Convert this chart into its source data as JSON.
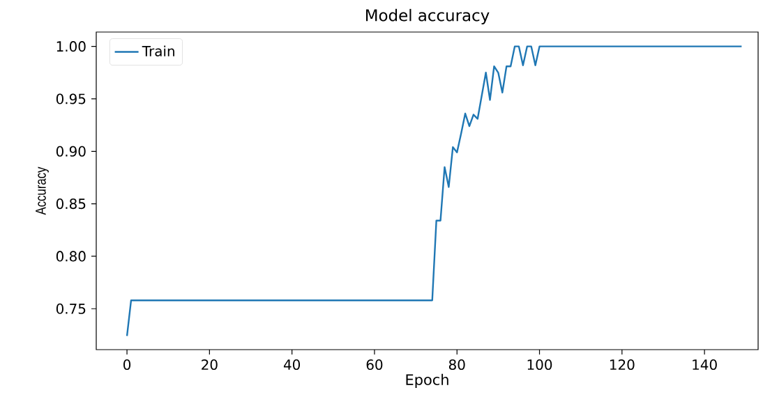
{
  "chart_data": {
    "type": "line",
    "title": "Model accuracy",
    "xlabel": "Epoch",
    "ylabel": "Accuracy",
    "x": [
      0,
      1,
      74,
      75,
      76,
      77,
      78,
      79,
      80,
      81,
      82,
      83,
      84,
      85,
      86,
      87,
      88,
      89,
      90,
      91,
      92,
      93,
      94,
      95,
      96,
      97,
      98,
      99,
      100,
      149
    ],
    "series": [
      {
        "name": "Train",
        "color": "#1f77b4",
        "values": [
          0.724,
          0.758,
          0.758,
          0.834,
          0.834,
          0.885,
          0.866,
          0.904,
          0.899,
          0.917,
          0.936,
          0.924,
          0.935,
          0.931,
          0.953,
          0.975,
          0.949,
          0.981,
          0.975,
          0.956,
          0.981,
          0.981,
          1.0,
          1.0,
          0.982,
          1.0,
          1.0,
          0.982,
          1.0,
          1.0
        ]
      }
    ],
    "xlim": [
      -7.45,
      153
    ],
    "ylim": [
      0.711,
      1.0137
    ],
    "xticks": [
      0,
      20,
      40,
      60,
      80,
      100,
      120,
      140
    ],
    "yticks": [
      {
        "value": 0.75,
        "label": "0.75"
      },
      {
        "value": 0.8,
        "label": "0.80"
      },
      {
        "value": 0.85,
        "label": "0.85"
      },
      {
        "value": 0.9,
        "label": "0.90"
      },
      {
        "value": 0.95,
        "label": "0.95"
      },
      {
        "value": 1.0,
        "label": "1.00"
      }
    ],
    "legend": "top left",
    "grid": false,
    "marker": "none",
    "line_style": "solid"
  }
}
